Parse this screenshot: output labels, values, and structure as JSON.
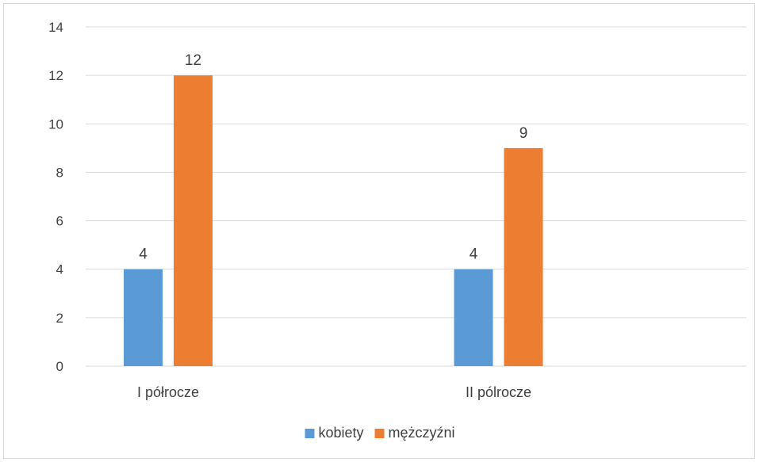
{
  "chart_data": {
    "type": "bar",
    "title": "",
    "xlabel": "",
    "ylabel": "",
    "categories": [
      "I półrocze",
      "II pólrocze"
    ],
    "series": [
      {
        "name": "kobiety",
        "values": [
          4,
          4
        ],
        "color": "#5b9bd5"
      },
      {
        "name": "mężczyźni",
        "values": [
          12,
          9
        ],
        "color": "#ed7d31"
      }
    ],
    "ylim": [
      0,
      14
    ],
    "yticks": [
      "0",
      "2",
      "4",
      "6",
      "8",
      "10",
      "12",
      "14"
    ],
    "grid": true,
    "data_labels": true,
    "legend_position": "bottom",
    "gridline_color": "#d9d9d9"
  }
}
